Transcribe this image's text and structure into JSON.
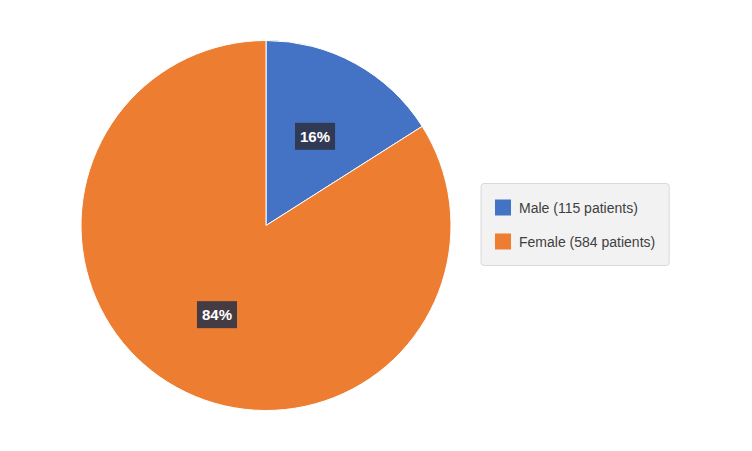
{
  "chart_data": {
    "type": "pie",
    "categories": [
      "Male (115 patients)",
      "Female (584 patients)"
    ],
    "values": [
      16,
      84
    ],
    "value_labels": [
      "16%",
      "84%"
    ],
    "colors": [
      "#4472C4",
      "#ED7D31"
    ],
    "data_labels": true,
    "legend": "right"
  }
}
